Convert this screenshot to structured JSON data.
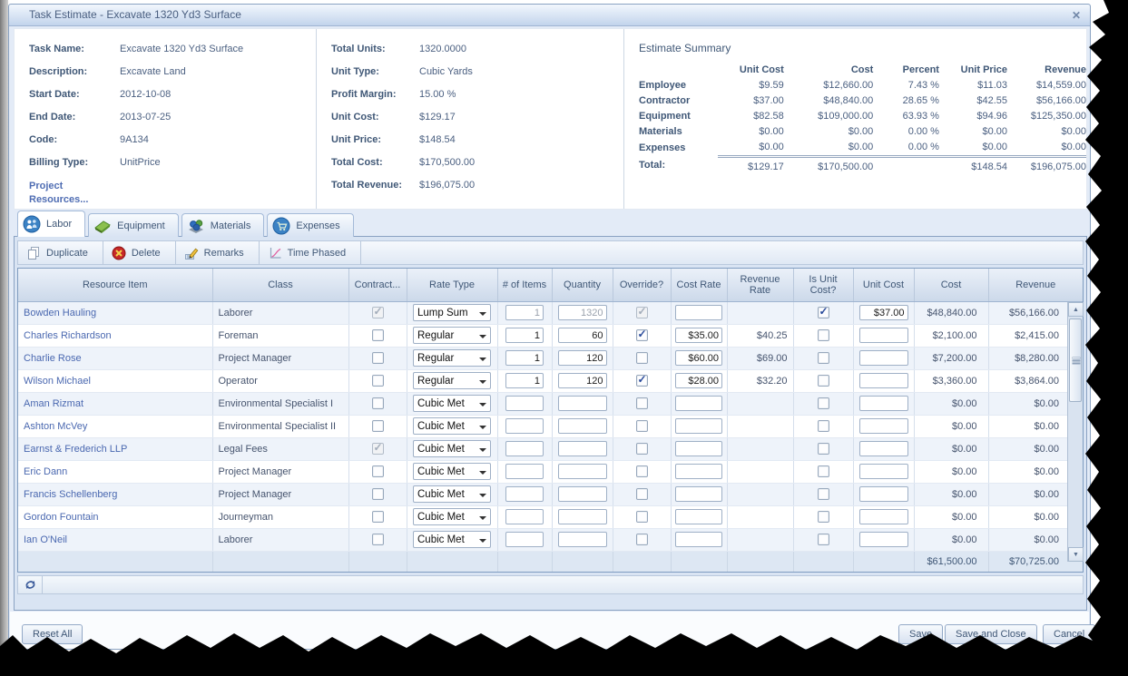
{
  "window": {
    "title": "Task Estimate - Excavate 1320 Yd3 Surface",
    "close_glyph": "✕"
  },
  "task_info": {
    "fields": [
      {
        "label": "Task Name:",
        "value": "Excavate 1320 Yd3 Surface"
      },
      {
        "label": "Description:",
        "value": "Excavate Land"
      },
      {
        "label": "Start Date:",
        "value": "2012-10-08"
      },
      {
        "label": "End Date:",
        "value": "2013-07-25"
      },
      {
        "label": "Code:",
        "value": "9A134"
      },
      {
        "label": "Billing Type:",
        "value": "UnitPrice"
      }
    ],
    "project_resources_link": "Project Resources..."
  },
  "totals_info": {
    "fields": [
      {
        "label": "Total Units:",
        "value": "1320.0000"
      },
      {
        "label": "Unit Type:",
        "value": "Cubic Yards"
      },
      {
        "label": "Profit Margin:",
        "value": "15.00 %"
      },
      {
        "label": "Unit Cost:",
        "value": "$129.17"
      },
      {
        "label": "Unit Price:",
        "value": "$148.54"
      },
      {
        "label": "Total Cost:",
        "value": "$170,500.00"
      },
      {
        "label": "Total Revenue:",
        "value": "$196,075.00"
      }
    ]
  },
  "estimate_summary": {
    "title": "Estimate Summary",
    "columns": [
      "Unit Cost",
      "Cost",
      "Percent",
      "Unit Price",
      "Revenue"
    ],
    "rows": [
      {
        "label": "Employee",
        "values": [
          "$9.59",
          "$12,660.00",
          "7.43 %",
          "$11.03",
          "$14,559.00"
        ]
      },
      {
        "label": "Contractor",
        "values": [
          "$37.00",
          "$48,840.00",
          "28.65 %",
          "$42.55",
          "$56,166.00"
        ]
      },
      {
        "label": "Equipment",
        "values": [
          "$82.58",
          "$109,000.00",
          "63.93 %",
          "$94.96",
          "$125,350.00"
        ]
      },
      {
        "label": "Materials",
        "values": [
          "$0.00",
          "$0.00",
          "0.00 %",
          "$0.00",
          "$0.00"
        ]
      },
      {
        "label": "Expenses",
        "values": [
          "$0.00",
          "$0.00",
          "0.00 %",
          "$0.00",
          "$0.00"
        ]
      }
    ],
    "total_row": {
      "label": "Total:",
      "values": [
        "$129.17",
        "$170,500.00",
        "",
        "$148.54",
        "$196,075.00"
      ]
    }
  },
  "tabs": [
    {
      "label": "Labor",
      "icon": "labor-people-icon",
      "active": true
    },
    {
      "label": "Equipment",
      "icon": "equipment-tab-icon",
      "active": false
    },
    {
      "label": "Materials",
      "icon": "materials-tab-icon",
      "active": false
    },
    {
      "label": "Expenses",
      "icon": "expenses-cart-icon",
      "active": false
    }
  ],
  "toolbar": [
    {
      "label": "Duplicate",
      "icon": "duplicate-pages-icon"
    },
    {
      "label": "Delete",
      "icon": "delete-icon"
    },
    {
      "label": "Remarks",
      "icon": "remarks-pencil-icon"
    },
    {
      "label": "Time Phased",
      "icon": "time-phased-chart-icon"
    }
  ],
  "grid": {
    "columns": [
      "Resource Item",
      "Class",
      "Contract...",
      "Rate Type",
      "# of Items",
      "Quantity",
      "Override?",
      "Cost Rate",
      "Revenue Rate",
      "Is Unit Cost?",
      "Unit Cost",
      "Cost",
      "Revenue"
    ],
    "rows": [
      {
        "resource": "Bowden Hauling",
        "klass": "Laborer",
        "contract": "checked-disabled",
        "rate_type": "Lump Sum",
        "items": "1",
        "quantity": "1320",
        "muted": true,
        "override": "checked-disabled",
        "cost_rate": "",
        "revenue_rate": "",
        "is_unit": "checked",
        "unit_cost": "$37.00",
        "cost": "$48,840.00",
        "revenue": "$56,166.00"
      },
      {
        "resource": "Charles Richardson",
        "klass": "Foreman",
        "contract": "unchecked",
        "rate_type": "Regular",
        "items": "1",
        "quantity": "60",
        "muted": false,
        "override": "checked",
        "cost_rate": "$35.00",
        "revenue_rate": "$40.25",
        "is_unit": "unchecked",
        "unit_cost": "",
        "cost": "$2,100.00",
        "revenue": "$2,415.00"
      },
      {
        "resource": "Charlie Rose",
        "klass": "Project Manager",
        "contract": "unchecked",
        "rate_type": "Regular",
        "items": "1",
        "quantity": "120",
        "muted": false,
        "override": "unchecked",
        "cost_rate": "$60.00",
        "revenue_rate": "$69.00",
        "is_unit": "unchecked",
        "unit_cost": "",
        "cost": "$7,200.00",
        "revenue": "$8,280.00"
      },
      {
        "resource": "Wilson Michael",
        "klass": "Operator",
        "contract": "unchecked",
        "rate_type": "Regular",
        "items": "1",
        "quantity": "120",
        "muted": false,
        "override": "checked",
        "cost_rate": "$28.00",
        "revenue_rate": "$32.20",
        "is_unit": "unchecked",
        "unit_cost": "",
        "cost": "$3,360.00",
        "revenue": "$3,864.00"
      },
      {
        "resource": "Aman Rizmat",
        "klass": "Environmental Specialist I",
        "contract": "unchecked",
        "rate_type": "Cubic Met",
        "items": "",
        "quantity": "",
        "muted": false,
        "override": "unchecked",
        "cost_rate": "",
        "revenue_rate": "",
        "is_unit": "unchecked",
        "unit_cost": "",
        "cost": "$0.00",
        "revenue": "$0.00"
      },
      {
        "resource": "Ashton McVey",
        "klass": "Environmental Specialist II",
        "contract": "unchecked",
        "rate_type": "Cubic Met",
        "items": "",
        "quantity": "",
        "muted": false,
        "override": "unchecked",
        "cost_rate": "",
        "revenue_rate": "",
        "is_unit": "unchecked",
        "unit_cost": "",
        "cost": "$0.00",
        "revenue": "$0.00"
      },
      {
        "resource": "Earnst & Frederich LLP",
        "klass": "Legal Fees",
        "contract": "checked-disabled",
        "rate_type": "Cubic Met",
        "items": "",
        "quantity": "",
        "muted": false,
        "override": "unchecked",
        "cost_rate": "",
        "revenue_rate": "",
        "is_unit": "unchecked",
        "unit_cost": "",
        "cost": "$0.00",
        "revenue": "$0.00"
      },
      {
        "resource": "Eric Dann",
        "klass": "Project Manager",
        "contract": "unchecked",
        "rate_type": "Cubic Met",
        "items": "",
        "quantity": "",
        "muted": false,
        "override": "unchecked",
        "cost_rate": "",
        "revenue_rate": "",
        "is_unit": "unchecked",
        "unit_cost": "",
        "cost": "$0.00",
        "revenue": "$0.00"
      },
      {
        "resource": "Francis Schellenberg",
        "klass": "Project Manager",
        "contract": "unchecked",
        "rate_type": "Cubic Met",
        "items": "",
        "quantity": "",
        "muted": false,
        "override": "unchecked",
        "cost_rate": "",
        "revenue_rate": "",
        "is_unit": "unchecked",
        "unit_cost": "",
        "cost": "$0.00",
        "revenue": "$0.00"
      },
      {
        "resource": "Gordon Fountain",
        "klass": "Journeyman",
        "contract": "unchecked",
        "rate_type": "Cubic Met",
        "items": "",
        "quantity": "",
        "muted": false,
        "override": "unchecked",
        "cost_rate": "",
        "revenue_rate": "",
        "is_unit": "unchecked",
        "unit_cost": "",
        "cost": "$0.00",
        "revenue": "$0.00"
      },
      {
        "resource": "Ian O'Neil",
        "klass": "Laborer",
        "contract": "unchecked",
        "rate_type": "Cubic Met",
        "items": "",
        "quantity": "",
        "muted": false,
        "override": "unchecked",
        "cost_rate": "",
        "revenue_rate": "",
        "is_unit": "unchecked",
        "unit_cost": "",
        "cost": "$0.00",
        "revenue": "$0.00"
      }
    ],
    "totals": {
      "cost": "$61,500.00",
      "revenue": "$70,725.00"
    }
  },
  "footer": {
    "reset": "Reset All",
    "save": "Save",
    "save_close": "Save and Close",
    "cancel": "Cancel"
  },
  "colors": {
    "accent": "#3f5776",
    "link": "#4a68b0",
    "header_grad_top": "#ebf1f9",
    "header_grad_bottom": "#ccd9ea",
    "check": "#2a4b9b"
  }
}
